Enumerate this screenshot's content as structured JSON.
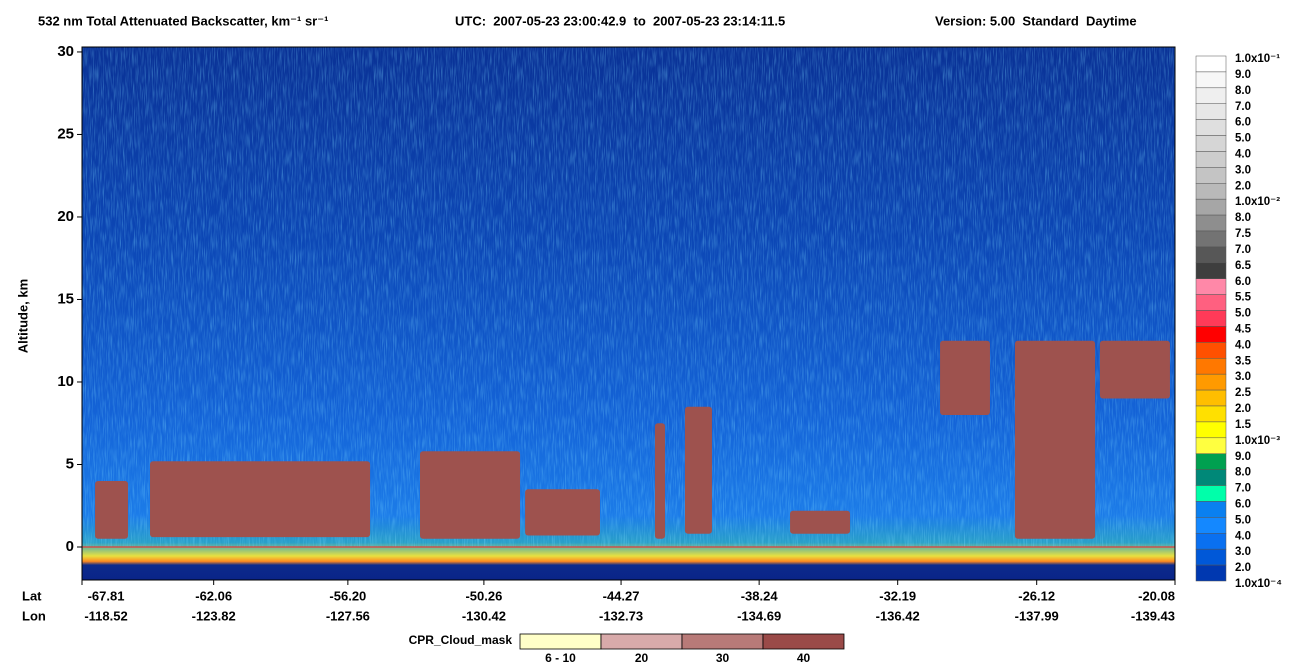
{
  "chart_data": {
    "type": "curtain",
    "title": "532 nm Total Attenuated Backscatter, km⁻¹ sr⁻¹",
    "time_range": "UTC:  2007-05-23 23:00:42.9  to  2007-05-23 23:14:11.5",
    "version": "Version: 5.00  Standard  Daytime",
    "y_label": "Altitude, km",
    "x_label": "Lat",
    "x2_label": "Lon",
    "ylim": [
      -2,
      30.3
    ],
    "yticks": [
      0,
      5,
      10,
      15,
      20,
      25,
      30
    ],
    "xlim": [
      -67.81,
      -20.08
    ],
    "xticks": [
      -67.81,
      -62.06,
      {
        "value": -56.2,
        "label": "-56.20"
      },
      -50.26,
      -44.27,
      -38.24,
      -32.19,
      -26.12,
      -20.08
    ],
    "lon_ticks": [
      -118.52,
      -123.82,
      -127.56,
      -130.42,
      -132.73,
      -134.69,
      -136.42,
      -137.99,
      -139.43
    ],
    "cloud_color": "#9e524e",
    "clouds": [
      {
        "lat": [
          -67.24,
          -65.8
        ],
        "alt": [
          0.5,
          4.0
        ]
      },
      {
        "lat": [
          -64.84,
          -55.23
        ],
        "alt": [
          0.6,
          5.2
        ]
      },
      {
        "lat": [
          -53.05,
          -48.68
        ],
        "alt": [
          0.5,
          5.8
        ]
      },
      {
        "lat": [
          -48.46,
          -45.19
        ],
        "alt": [
          0.7,
          3.5
        ]
      },
      {
        "lat": [
          -42.79,
          -42.35
        ],
        "alt": [
          0.5,
          7.5
        ]
      },
      {
        "lat": [
          -41.48,
          -40.3
        ],
        "alt": [
          0.8,
          8.5
        ]
      },
      {
        "lat": [
          -36.89,
          -34.27
        ],
        "alt": [
          0.8,
          2.2
        ]
      },
      {
        "lat": [
          -30.34,
          -28.16
        ],
        "alt": [
          8.0,
          12.5
        ]
      },
      {
        "lat": [
          -27.07,
          -23.57
        ],
        "alt": [
          0.5,
          12.5
        ]
      },
      {
        "lat": [
          -23.36,
          -20.3
        ],
        "alt": [
          9.0,
          12.5
        ]
      }
    ],
    "colorbar": {
      "labels": [
        "1.0x10⁻¹",
        "9.0",
        "8.0",
        "7.0",
        "6.0",
        "5.0",
        "4.0",
        "3.0",
        "2.0",
        "1.0x10⁻²",
        "8.0",
        "7.5",
        "7.0",
        "6.5",
        "6.0",
        "5.5",
        "5.0",
        "4.5",
        "4.0",
        "3.5",
        "3.0",
        "2.5",
        "2.0",
        "1.5",
        "1.0x10⁻³",
        "9.0",
        "8.0",
        "7.0",
        "6.0",
        "5.0",
        "4.0",
        "3.0",
        "2.0",
        "1.0x10⁻⁴"
      ],
      "colors": [
        "#ffffff",
        "#f7f7f7",
        "#efefef",
        "#e7e7e7",
        "#dfdfdf",
        "#d6d6d6",
        "#cdcdcd",
        "#c4c4c4",
        "#b9b9b9",
        "#a6a6a6",
        "#8e8e8e",
        "#737373",
        "#575757",
        "#3e3e3e",
        "#ff88a8",
        "#ff6080",
        "#ff3a58",
        "#ff0000",
        "#ff5000",
        "#ff7800",
        "#ff9a00",
        "#ffbe00",
        "#ffe000",
        "#ffff00",
        "#ffff40",
        "#00a050",
        "#008878",
        "#00ffaa",
        "#0a80f0",
        "#1488ff",
        "#0a70f0",
        "#0058d8",
        "#0038b0",
        "#00209a"
      ]
    },
    "cloud_mask": {
      "name": "CPR_Cloud_mask",
      "labels": [
        "6 - 10",
        "20",
        "30",
        "40"
      ],
      "colors": [
        "#ffffc8",
        "#d8aaaa",
        "#b87a78",
        "#9a4a48"
      ]
    }
  }
}
